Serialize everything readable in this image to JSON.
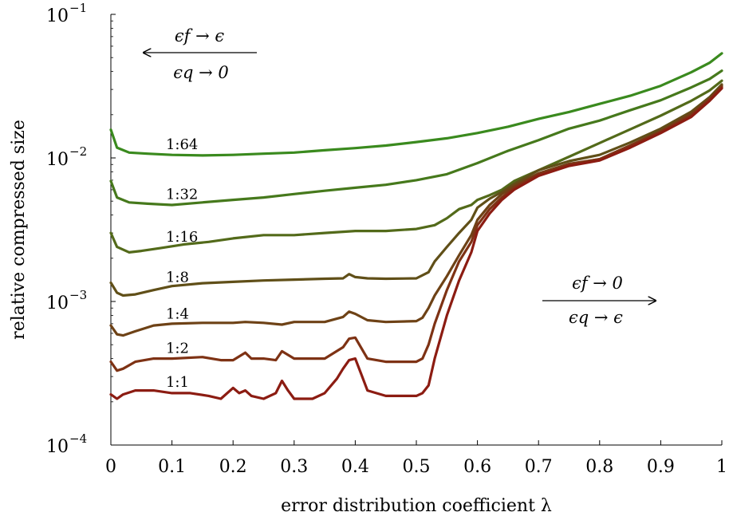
{
  "chart_data": {
    "type": "line",
    "title": "",
    "xlabel": "error distribution coefficient λ",
    "ylabel": "relative compressed size",
    "xlim": [
      0,
      1
    ],
    "ylim": [
      0.0001,
      0.1
    ],
    "yscale": "log",
    "grid": false,
    "legend": "none",
    "x_ticks": [
      {
        "value": 0,
        "label": "0"
      },
      {
        "value": 0.1,
        "label": "0.1"
      },
      {
        "value": 0.2,
        "label": "0.2"
      },
      {
        "value": 0.3,
        "label": "0.3"
      },
      {
        "value": 0.4,
        "label": "0.4"
      },
      {
        "value": 0.5,
        "label": "0.5"
      },
      {
        "value": 0.6,
        "label": "0.6"
      },
      {
        "value": 0.7,
        "label": "0.7"
      },
      {
        "value": 0.8,
        "label": "0.8"
      },
      {
        "value": 0.9,
        "label": "0.9"
      },
      {
        "value": 1,
        "label": "1"
      }
    ],
    "y_ticks": [
      {
        "value": 0.0001,
        "base": "10",
        "exp": "−4"
      },
      {
        "value": 0.001,
        "base": "10",
        "exp": "−3"
      },
      {
        "value": 0.01,
        "base": "10",
        "exp": "−2"
      },
      {
        "value": 0.1,
        "base": "10",
        "exp": "−1"
      }
    ],
    "annotations": [
      {
        "id": "left",
        "top": "ϵf → ϵ",
        "bottom": "ϵq → 0",
        "arrow": "left"
      },
      {
        "id": "right",
        "top": "ϵf → 0",
        "bottom": "ϵq → ϵ",
        "arrow": "right"
      }
    ],
    "series": [
      {
        "name": "1:64",
        "color": "#3a8a1e",
        "label_x": 0.09,
        "x": [
          0,
          0.01,
          0.03,
          0.06,
          0.1,
          0.15,
          0.2,
          0.25,
          0.3,
          0.35,
          0.4,
          0.45,
          0.5,
          0.55,
          0.6,
          0.65,
          0.7,
          0.75,
          0.8,
          0.85,
          0.9,
          0.95,
          0.98,
          1.0
        ],
        "y": [
          0.0157,
          0.0118,
          0.0109,
          0.0107,
          0.0105,
          0.0104,
          0.0105,
          0.0107,
          0.0109,
          0.0113,
          0.0117,
          0.0122,
          0.0129,
          0.0137,
          0.0149,
          0.0165,
          0.0187,
          0.0209,
          0.0238,
          0.0271,
          0.0318,
          0.0395,
          0.046,
          0.0535
        ]
      },
      {
        "name": "1:32",
        "color": "#46791c",
        "label_x": 0.09,
        "x": [
          0,
          0.01,
          0.03,
          0.06,
          0.1,
          0.15,
          0.2,
          0.25,
          0.3,
          0.35,
          0.4,
          0.45,
          0.5,
          0.55,
          0.6,
          0.65,
          0.7,
          0.75,
          0.8,
          0.85,
          0.9,
          0.95,
          0.98,
          1.0
        ],
        "y": [
          0.0069,
          0.0053,
          0.0049,
          0.0048,
          0.0047,
          0.0049,
          0.0051,
          0.0053,
          0.0056,
          0.0059,
          0.0062,
          0.0065,
          0.007,
          0.0077,
          0.0092,
          0.0112,
          0.0133,
          0.016,
          0.0182,
          0.0215,
          0.0252,
          0.031,
          0.0355,
          0.0405
        ]
      },
      {
        "name": "1:16",
        "color": "#536a1a",
        "label_x": 0.09,
        "x": [
          0,
          0.01,
          0.03,
          0.05,
          0.08,
          0.12,
          0.16,
          0.2,
          0.25,
          0.3,
          0.35,
          0.4,
          0.45,
          0.5,
          0.53,
          0.55,
          0.57,
          0.59,
          0.6,
          0.62,
          0.64,
          0.66,
          0.7,
          0.75,
          0.8,
          0.85,
          0.9,
          0.95,
          0.98,
          1.0
        ],
        "y": [
          0.003,
          0.0024,
          0.0022,
          0.00225,
          0.00235,
          0.0025,
          0.0026,
          0.00275,
          0.0029,
          0.0029,
          0.003,
          0.0031,
          0.0031,
          0.0032,
          0.0034,
          0.0038,
          0.0044,
          0.0047,
          0.0051,
          0.0055,
          0.006,
          0.0069,
          0.0082,
          0.0102,
          0.0127,
          0.0158,
          0.0197,
          0.025,
          0.0295,
          0.0345
        ]
      },
      {
        "name": "1:8",
        "color": "#604f18",
        "label_x": 0.09,
        "x": [
          0,
          0.01,
          0.02,
          0.04,
          0.07,
          0.1,
          0.15,
          0.2,
          0.25,
          0.3,
          0.35,
          0.38,
          0.39,
          0.4,
          0.42,
          0.45,
          0.5,
          0.52,
          0.53,
          0.55,
          0.57,
          0.59,
          0.6,
          0.62,
          0.64,
          0.66,
          0.7,
          0.75,
          0.8,
          0.85,
          0.9,
          0.95,
          0.98,
          1.0
        ],
        "y": [
          0.00135,
          0.00115,
          0.0011,
          0.00112,
          0.0012,
          0.00128,
          0.00134,
          0.00137,
          0.0014,
          0.00142,
          0.00144,
          0.00145,
          0.00155,
          0.00148,
          0.00145,
          0.00144,
          0.00145,
          0.0016,
          0.0019,
          0.0024,
          0.003,
          0.0037,
          0.0045,
          0.0052,
          0.0058,
          0.0066,
          0.0082,
          0.0095,
          0.0105,
          0.0128,
          0.016,
          0.021,
          0.0265,
          0.0325
        ]
      },
      {
        "name": "1:4",
        "color": "#6e4216",
        "label_x": 0.09,
        "x": [
          0,
          0.01,
          0.02,
          0.04,
          0.07,
          0.1,
          0.15,
          0.2,
          0.22,
          0.25,
          0.28,
          0.3,
          0.35,
          0.38,
          0.39,
          0.4,
          0.42,
          0.45,
          0.5,
          0.51,
          0.52,
          0.53,
          0.55,
          0.57,
          0.59,
          0.6,
          0.62,
          0.64,
          0.66,
          0.7,
          0.75,
          0.8,
          0.85,
          0.9,
          0.95,
          0.98,
          1.0
        ],
        "y": [
          0.00068,
          0.00059,
          0.00058,
          0.00062,
          0.00068,
          0.0007,
          0.00071,
          0.00071,
          0.00072,
          0.00071,
          0.00069,
          0.00072,
          0.00072,
          0.00078,
          0.00085,
          0.00082,
          0.00074,
          0.00072,
          0.00073,
          0.00077,
          0.0009,
          0.0011,
          0.0015,
          0.0021,
          0.0029,
          0.0037,
          0.0047,
          0.0056,
          0.0064,
          0.0078,
          0.0091,
          0.0098,
          0.0122,
          0.0154,
          0.0205,
          0.026,
          0.0318
        ]
      },
      {
        "name": "1:2",
        "color": "#7e3214",
        "label_x": 0.09,
        "x": [
          0,
          0.01,
          0.02,
          0.04,
          0.07,
          0.1,
          0.15,
          0.18,
          0.2,
          0.22,
          0.23,
          0.25,
          0.27,
          0.28,
          0.3,
          0.35,
          0.38,
          0.39,
          0.4,
          0.42,
          0.45,
          0.5,
          0.51,
          0.52,
          0.53,
          0.55,
          0.57,
          0.59,
          0.6,
          0.62,
          0.64,
          0.66,
          0.7,
          0.75,
          0.8,
          0.85,
          0.9,
          0.95,
          0.98,
          1.0
        ],
        "y": [
          0.00038,
          0.00033,
          0.00034,
          0.00038,
          0.0004,
          0.0004,
          0.00041,
          0.00039,
          0.00039,
          0.00044,
          0.0004,
          0.0004,
          0.00039,
          0.00045,
          0.0004,
          0.0004,
          0.00048,
          0.00055,
          0.00056,
          0.0004,
          0.00038,
          0.00038,
          0.0004,
          0.0005,
          0.0007,
          0.0012,
          0.0019,
          0.0026,
          0.0034,
          0.0044,
          0.0053,
          0.0062,
          0.0077,
          0.009,
          0.0098,
          0.0122,
          0.0152,
          0.0198,
          0.0255,
          0.0312
        ]
      },
      {
        "name": "1:1",
        "color": "#8c1c12",
        "label_x": 0.09,
        "x": [
          0,
          0.01,
          0.02,
          0.04,
          0.07,
          0.1,
          0.13,
          0.16,
          0.18,
          0.2,
          0.21,
          0.22,
          0.23,
          0.25,
          0.27,
          0.28,
          0.29,
          0.3,
          0.33,
          0.35,
          0.37,
          0.38,
          0.39,
          0.4,
          0.41,
          0.42,
          0.45,
          0.5,
          0.51,
          0.52,
          0.53,
          0.55,
          0.57,
          0.59,
          0.6,
          0.62,
          0.64,
          0.66,
          0.7,
          0.75,
          0.8,
          0.85,
          0.9,
          0.95,
          0.98,
          1.0
        ],
        "y": [
          0.000225,
          0.00021,
          0.000225,
          0.00024,
          0.00024,
          0.00023,
          0.00023,
          0.00022,
          0.00021,
          0.00025,
          0.00023,
          0.00024,
          0.00022,
          0.00021,
          0.00023,
          0.00028,
          0.00024,
          0.00021,
          0.00021,
          0.00023,
          0.00029,
          0.00034,
          0.00039,
          0.0004,
          0.00031,
          0.00024,
          0.00022,
          0.00022,
          0.00023,
          0.00026,
          0.0004,
          0.0008,
          0.0014,
          0.0022,
          0.0031,
          0.0041,
          0.0051,
          0.006,
          0.0075,
          0.0088,
          0.0096,
          0.0118,
          0.0149,
          0.0193,
          0.025,
          0.0305
        ]
      }
    ]
  }
}
